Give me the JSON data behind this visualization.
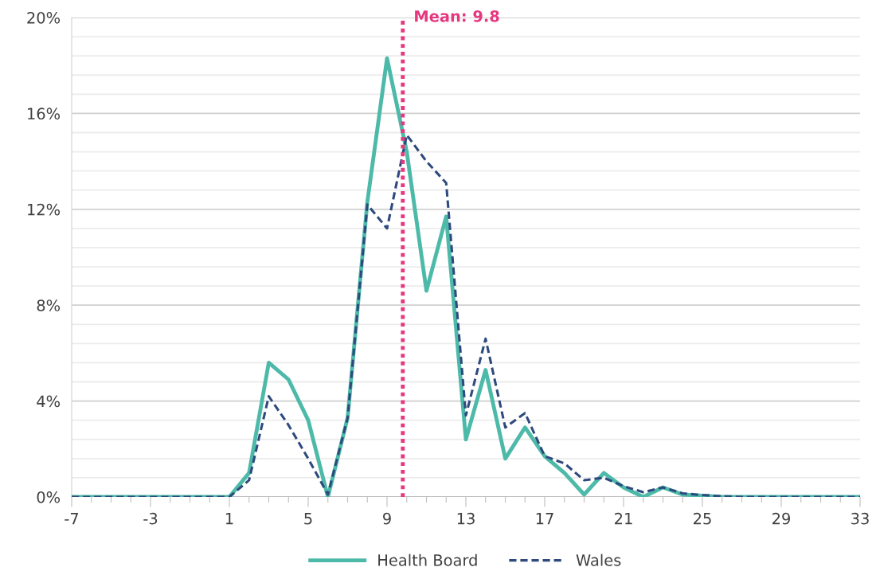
{
  "chart_data": {
    "type": "line",
    "x": [
      -7,
      -6,
      -5,
      -4,
      -3,
      -2,
      -1,
      0,
      1,
      2,
      3,
      4,
      5,
      6,
      7,
      8,
      9,
      10,
      11,
      12,
      13,
      14,
      15,
      16,
      17,
      18,
      19,
      20,
      21,
      22,
      23,
      24,
      25,
      26,
      27,
      28,
      29,
      30,
      31,
      32,
      33
    ],
    "series": [
      {
        "name": "Health Board",
        "color": "#4dbaa9",
        "line_style": "solid",
        "values": [
          0,
          0,
          0,
          0,
          0,
          0,
          0,
          0,
          0,
          1.0,
          5.6,
          4.9,
          3.2,
          0,
          3.3,
          12.3,
          18.3,
          14.4,
          8.6,
          11.7,
          2.4,
          5.3,
          1.6,
          2.9,
          1.7,
          1.0,
          0.1,
          1.0,
          0.4,
          0,
          0.4,
          0.1,
          0.05,
          0,
          0,
          0,
          0,
          0,
          0,
          0,
          0
        ]
      },
      {
        "name": "Wales",
        "color": "#2e4a7d",
        "line_style": "dashed",
        "values": [
          0,
          0,
          0,
          0,
          0,
          0,
          0,
          0,
          0,
          0.7,
          4.2,
          3.0,
          1.6,
          0.1,
          3.3,
          12.2,
          11.2,
          15.1,
          14.0,
          13.1,
          3.4,
          6.6,
          2.9,
          3.5,
          1.7,
          1.4,
          0.7,
          0.8,
          0.45,
          0.2,
          0.4,
          0.15,
          0.08,
          0.03,
          0,
          0,
          0,
          0,
          0,
          0,
          0
        ]
      }
    ],
    "xlim": [
      -7,
      33
    ],
    "xticks": [
      -7,
      {
        "value": -6,
        "label": null
      },
      {
        "value": -5,
        "label": null
      },
      {
        "value": -4,
        "label": null
      },
      -3,
      {
        "value": -2,
        "label": null
      },
      {
        "value": -1,
        "label": null
      },
      {
        "value": 0,
        "label": null
      },
      1,
      {
        "value": 2,
        "label": null
      },
      {
        "value": 3,
        "label": null
      },
      {
        "value": 4,
        "label": null
      },
      5,
      {
        "value": 6,
        "label": null
      },
      {
        "value": 7,
        "label": null
      },
      {
        "value": 8,
        "label": null
      },
      9,
      {
        "value": 10,
        "label": null
      },
      {
        "value": 11,
        "label": null
      },
      {
        "value": 12,
        "label": null
      },
      13,
      {
        "value": 14,
        "label": null
      },
      {
        "value": 15,
        "label": null
      },
      {
        "value": 16,
        "label": null
      },
      17,
      {
        "value": 18,
        "label": null
      },
      {
        "value": 19,
        "label": null
      },
      {
        "value": 20,
        "label": null
      },
      21,
      {
        "value": 22,
        "label": null
      },
      {
        "value": 23,
        "label": null
      },
      {
        "value": 24,
        "label": null
      },
      25,
      {
        "value": 26,
        "label": null
      },
      {
        "value": 27,
        "label": null
      },
      {
        "value": 28,
        "label": null
      },
      29,
      {
        "value": 30,
        "label": null
      },
      {
        "value": 31,
        "label": null
      },
      {
        "value": 32,
        "label": null
      },
      33
    ],
    "ylim": [
      0,
      20
    ],
    "yticks": [
      {
        "value": 0,
        "label": "0%"
      },
      {
        "value": 0.8,
        "label": null
      },
      {
        "value": 1.6,
        "label": null
      },
      {
        "value": 2.4,
        "label": null
      },
      {
        "value": 3.2,
        "label": null
      },
      {
        "value": 4,
        "label": "4%"
      },
      {
        "value": 4.8,
        "label": null
      },
      {
        "value": 5.6,
        "label": null
      },
      {
        "value": 6.4,
        "label": null
      },
      {
        "value": 7.2,
        "label": null
      },
      {
        "value": 8,
        "label": "8%"
      },
      {
        "value": 8.8,
        "label": null
      },
      {
        "value": 9.6,
        "label": null
      },
      {
        "value": 10.4,
        "label": null
      },
      {
        "value": 11.2,
        "label": null
      },
      {
        "value": 12,
        "label": "12%"
      },
      {
        "value": 12.8,
        "label": null
      },
      {
        "value": 13.6,
        "label": null
      },
      {
        "value": 14.4,
        "label": null
      },
      {
        "value": 15.2,
        "label": null
      },
      {
        "value": 16,
        "label": "16%"
      },
      {
        "value": 16.8,
        "label": null
      },
      {
        "value": 17.6,
        "label": null
      },
      {
        "value": 18.4,
        "label": null
      },
      {
        "value": 19.2,
        "label": null
      },
      {
        "value": 20,
        "label": "20%"
      }
    ],
    "ref_lines": [
      {
        "axis": "x",
        "value": 9.8,
        "label": "Mean: 9.8",
        "color": "#e6387f",
        "line_style": "dotted"
      }
    ],
    "grid": "y",
    "legend": "bottom"
  }
}
